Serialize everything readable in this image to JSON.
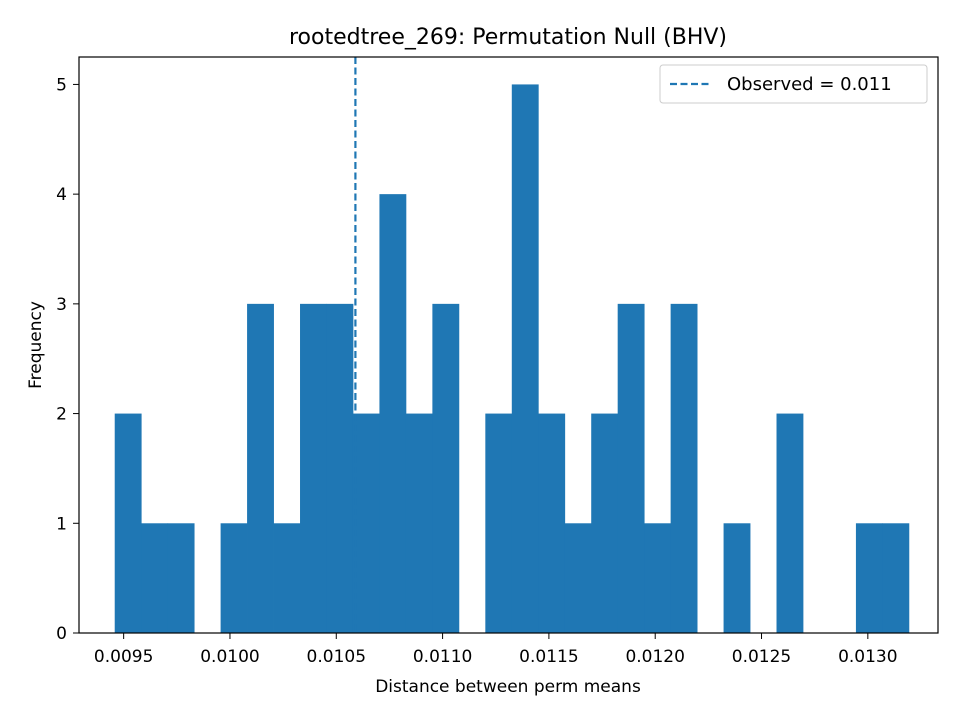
{
  "chart_data": {
    "type": "bar",
    "title": "rootedtree_269: Permutation Null (BHV)",
    "xlabel": "Distance between perm means",
    "ylabel": "Frequency",
    "xlim": [
      0.00929,
      0.01333
    ],
    "ylim": [
      0,
      5.25
    ],
    "x_ticks": [
      "0.0095",
      "0.0100",
      "0.0105",
      "0.0110",
      "0.0115",
      "0.0120",
      "0.0125",
      "0.0130"
    ],
    "x_tick_values": [
      0.0095,
      0.01,
      0.0105,
      0.011,
      0.0115,
      0.012,
      0.0125,
      0.013
    ],
    "y_ticks": [
      "0",
      "1",
      "2",
      "3",
      "4",
      "5"
    ],
    "y_tick_values": [
      0,
      1,
      2,
      3,
      4,
      5
    ],
    "bin_start": 0.009458,
    "bin_width": 0.0001245,
    "counts": [
      2,
      1,
      1,
      0,
      1,
      3,
      1,
      3,
      3,
      2,
      4,
      2,
      3,
      0,
      2,
      5,
      2,
      1,
      2,
      3,
      1,
      3,
      0,
      1,
      0,
      2,
      0,
      0,
      1,
      1
    ],
    "bar_color": "#1f77b4",
    "observed_line": {
      "value": 0.01059,
      "color": "#1f77b4",
      "style": "dashed"
    },
    "legend": {
      "label": "Observed = 0.011",
      "position": "top-right"
    },
    "grid": false
  }
}
